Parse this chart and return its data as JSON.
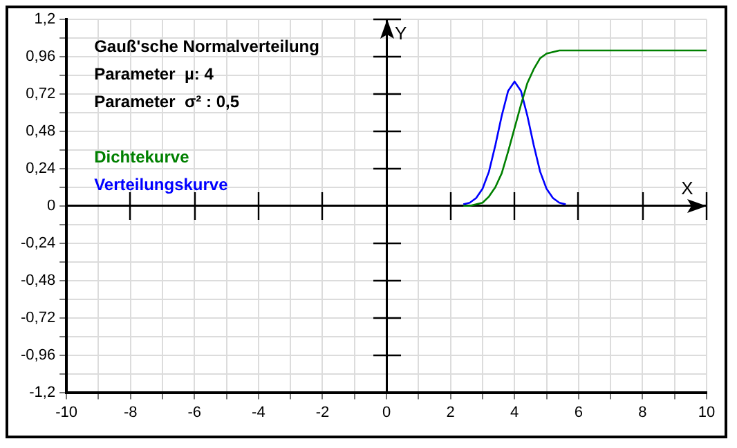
{
  "chart_data": {
    "type": "line",
    "title": "Gauß'sche Normalverteilung",
    "annotations": [
      "Parameter  µ: 4",
      "Parameter  σ² : 0,5"
    ],
    "xlabel": "X",
    "ylabel": "Y",
    "xlim": [
      -10,
      10
    ],
    "ylim": [
      -1.2,
      1.2
    ],
    "xticks": [
      -10,
      {
        "value": -9,
        "label": null
      },
      -8,
      {
        "value": -7,
        "label": null
      },
      -6,
      {
        "value": -5,
        "label": null
      },
      -4,
      {
        "value": -3,
        "label": null
      },
      -2,
      {
        "value": -1,
        "label": null
      },
      0,
      {
        "value": 1,
        "label": null
      },
      2,
      {
        "value": 3,
        "label": null
      },
      4,
      {
        "value": 5,
        "label": null
      },
      6,
      {
        "value": 7,
        "label": null
      },
      8,
      {
        "value": 9,
        "label": null
      },
      10
    ],
    "yticks": [
      {
        "value": -1.2,
        "label": "-1,2"
      },
      {
        "value": -1.08,
        "label": null
      },
      {
        "value": -0.96,
        "label": "-0,96"
      },
      {
        "value": -0.84,
        "label": null
      },
      {
        "value": -0.72,
        "label": "-0,72"
      },
      {
        "value": -0.6,
        "label": null
      },
      {
        "value": -0.48,
        "label": "-0,48"
      },
      {
        "value": -0.36,
        "label": null
      },
      {
        "value": -0.24,
        "label": "-0,24"
      },
      {
        "value": -0.12,
        "label": null
      },
      0,
      {
        "value": 0.12,
        "label": null
      },
      {
        "value": 0.24,
        "label": "0,24"
      },
      {
        "value": 0.36,
        "label": null
      },
      {
        "value": 0.48,
        "label": "0,48"
      },
      {
        "value": 0.6,
        "label": null
      },
      {
        "value": 0.72,
        "label": "0,72"
      },
      {
        "value": 0.84,
        "label": null
      },
      {
        "value": 0.96,
        "label": "0,96"
      },
      {
        "value": 1.08,
        "label": null
      },
      {
        "value": 1.2,
        "label": "1,2"
      }
    ],
    "grid": true,
    "legend": "top left",
    "marker": "none",
    "line_style": "solid",
    "series": [
      {
        "name": "Dichtekurve",
        "color": "#008000",
        "x": [
          2.4,
          2.6,
          2.8,
          3.0,
          3.2,
          3.4,
          3.6,
          3.8,
          4.0,
          4.2,
          4.4,
          4.6,
          4.8,
          5.0,
          5.2,
          5.4,
          5.6,
          10
        ],
        "values": [
          0,
          0,
          0.01,
          0.02,
          0.06,
          0.12,
          0.21,
          0.35,
          0.5,
          0.65,
          0.79,
          0.88,
          0.95,
          0.98,
          0.99,
          1,
          1,
          1
        ]
      },
      {
        "name": "Verteilungskurve",
        "color": "#0000ff",
        "x": [
          2.4,
          2.6,
          2.8,
          3.0,
          3.2,
          3.4,
          3.6,
          3.8,
          4.0,
          4.2,
          4.4,
          4.6,
          4.8,
          5.0,
          5.2,
          5.4,
          5.6
        ],
        "values": [
          0.01,
          0.02,
          0.05,
          0.11,
          0.22,
          0.39,
          0.58,
          0.74,
          0.8,
          0.74,
          0.58,
          0.39,
          0.22,
          0.11,
          0.05,
          0.02,
          0.01
        ]
      }
    ]
  }
}
